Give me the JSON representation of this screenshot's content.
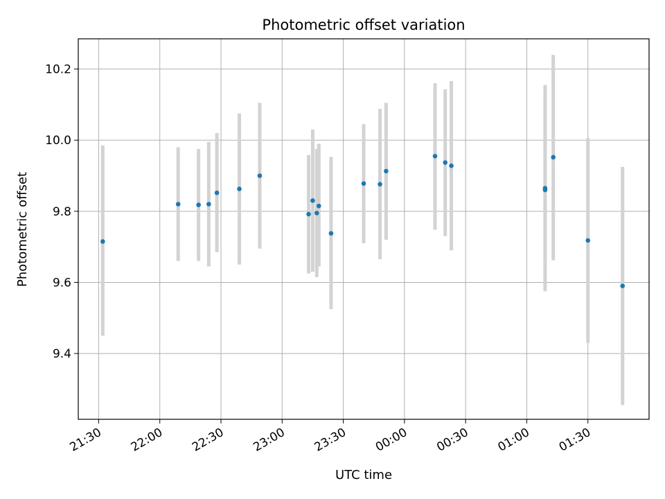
{
  "chart_data": {
    "type": "scatter",
    "title": "Photometric offset variation",
    "xlabel": "UTC time",
    "ylabel": "Photometric offset",
    "xlim": [
      "21:20",
      "02:00"
    ],
    "ylim": [
      9.215,
      10.285
    ],
    "grid": true,
    "x_ticks": [
      "21:30",
      "22:00",
      "22:30",
      "23:00",
      "23:30",
      "00:00",
      "00:30",
      "01:00",
      "01:30"
    ],
    "y_ticks": [
      9.4,
      9.6,
      9.8,
      10.0,
      10.2
    ],
    "colors": {
      "marker": "#1f77b4",
      "errorbar": "#d3d3d3",
      "grid": "#b0b0b0"
    },
    "series": [
      {
        "points": [
          {
            "x": "21:32",
            "y": 9.715,
            "ylo": 9.45,
            "yhi": 9.985
          },
          {
            "x": "22:09",
            "y": 9.82,
            "ylo": 9.66,
            "yhi": 9.98
          },
          {
            "x": "22:19",
            "y": 9.818,
            "ylo": 9.66,
            "yhi": 9.975
          },
          {
            "x": "22:24",
            "y": 9.82,
            "ylo": 9.645,
            "yhi": 9.995
          },
          {
            "x": "22:28",
            "y": 9.852,
            "ylo": 9.685,
            "yhi": 10.02
          },
          {
            "x": "22:39",
            "y": 9.863,
            "ylo": 9.65,
            "yhi": 10.075
          },
          {
            "x": "22:49",
            "y": 9.9,
            "ylo": 9.695,
            "yhi": 10.105
          },
          {
            "x": "23:13",
            "y": 9.792,
            "ylo": 9.625,
            "yhi": 9.958
          },
          {
            "x": "23:15",
            "y": 9.83,
            "ylo": 9.63,
            "yhi": 10.03
          },
          {
            "x": "23:17",
            "y": 9.795,
            "ylo": 9.615,
            "yhi": 9.975
          },
          {
            "x": "23:18",
            "y": 9.815,
            "ylo": 9.645,
            "yhi": 9.99
          },
          {
            "x": "23:24",
            "y": 9.738,
            "ylo": 9.525,
            "yhi": 9.953
          },
          {
            "x": "23:40",
            "y": 9.878,
            "ylo": 9.71,
            "yhi": 10.045
          },
          {
            "x": "23:48",
            "y": 9.876,
            "ylo": 9.665,
            "yhi": 10.088
          },
          {
            "x": "23:51",
            "y": 9.913,
            "ylo": 9.72,
            "yhi": 10.105
          },
          {
            "x": "00:15",
            "y": 9.955,
            "ylo": 9.748,
            "yhi": 10.16
          },
          {
            "x": "00:20",
            "y": 9.937,
            "ylo": 9.73,
            "yhi": 10.143
          },
          {
            "x": "00:23",
            "y": 9.928,
            "ylo": 9.69,
            "yhi": 10.166
          },
          {
            "x": "01:09",
            "y": 9.865,
            "ylo": 9.575,
            "yhi": 10.155
          },
          {
            "x": "01:09",
            "y": 9.86,
            "ylo": 9.585,
            "yhi": 10.135
          },
          {
            "x": "01:13",
            "y": 9.952,
            "ylo": 9.662,
            "yhi": 10.24
          },
          {
            "x": "01:30",
            "y": 9.718,
            "ylo": 9.43,
            "yhi": 10.006
          },
          {
            "x": "01:47",
            "y": 9.59,
            "ylo": 9.255,
            "yhi": 9.925
          }
        ]
      }
    ]
  }
}
